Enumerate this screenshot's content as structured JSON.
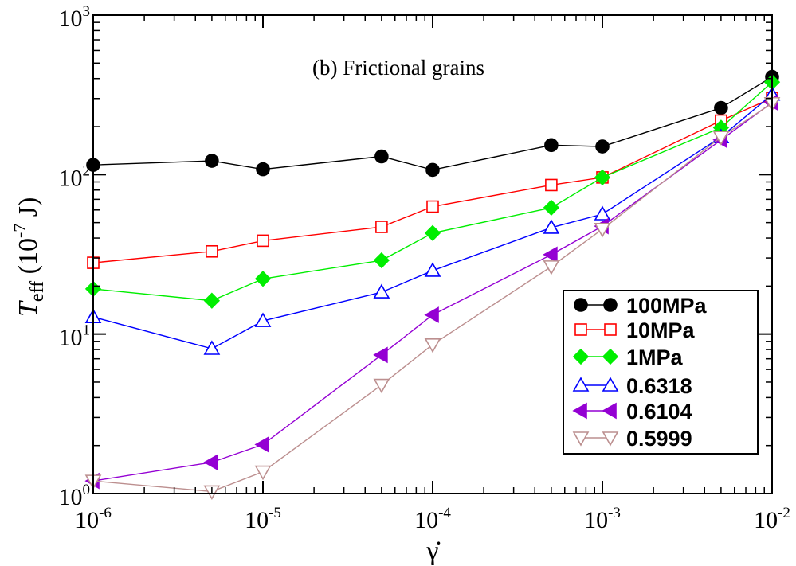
{
  "chart_data": {
    "type": "line",
    "title": "",
    "annotation": "(b) Frictional grains",
    "xlabel": "γ̇",
    "ylabel": {
      "symbol": "T",
      "subscript": "eff",
      "unit_prefix": "(10",
      "unit_exp": "-7",
      "unit_suffix": " J)"
    },
    "xscale": "log",
    "yscale": "log",
    "xlim": [
      1e-06,
      0.01
    ],
    "ylim": [
      1,
      1000
    ],
    "x_ticks": [
      {
        "base": "10",
        "exp": "-6"
      },
      {
        "base": "10",
        "exp": "-5"
      },
      {
        "base": "10",
        "exp": "-4"
      },
      {
        "base": "10",
        "exp": "-3"
      },
      {
        "base": "10",
        "exp": "-2"
      }
    ],
    "y_ticks": [
      {
        "base": "10",
        "exp": "0"
      },
      {
        "base": "10",
        "exp": "1"
      },
      {
        "base": "10",
        "exp": "2"
      },
      {
        "base": "10",
        "exp": "3"
      }
    ],
    "legend_position": "bottom-right",
    "x": [
      1e-06,
      5e-06,
      1e-05,
      5e-05,
      0.0001,
      0.0005,
      0.001,
      0.005,
      0.01
    ],
    "series": [
      {
        "name": "100MPa",
        "color": "#000000",
        "marker": "circle",
        "filled": true,
        "values": [
          115,
          122,
          108,
          130,
          107,
          153,
          150,
          262,
          410
        ]
      },
      {
        "name": "10MPa",
        "color": "#ff0000",
        "marker": "square",
        "filled": false,
        "values": [
          28,
          33,
          38.5,
          47,
          63,
          86,
          96,
          218,
          302
        ]
      },
      {
        "name": "1MPa",
        "color": "#00ee00",
        "marker": "diamond",
        "filled": true,
        "values": [
          19.2,
          16.2,
          22.2,
          29,
          43,
          62,
          96,
          197,
          380
        ]
      },
      {
        "name": "0.6318",
        "color": "#0000ff",
        "marker": "triangle-up",
        "filled": false,
        "values": [
          12.8,
          8.1,
          12.1,
          18.3,
          25,
          46.5,
          56.5,
          172,
          318
        ]
      },
      {
        "name": "0.6104",
        "color": "#9400d3",
        "marker": "triangle-left",
        "filled": true,
        "values": [
          1.2,
          1.57,
          2.03,
          7.4,
          13.2,
          31.5,
          47.5,
          165,
          283
        ]
      },
      {
        "name": "0.5999",
        "color": "#bc8f8f",
        "marker": "triangle-down",
        "filled": false,
        "values": [
          1.2,
          1.03,
          1.37,
          4.8,
          8.6,
          26.5,
          45.5,
          172,
          280
        ]
      }
    ]
  }
}
